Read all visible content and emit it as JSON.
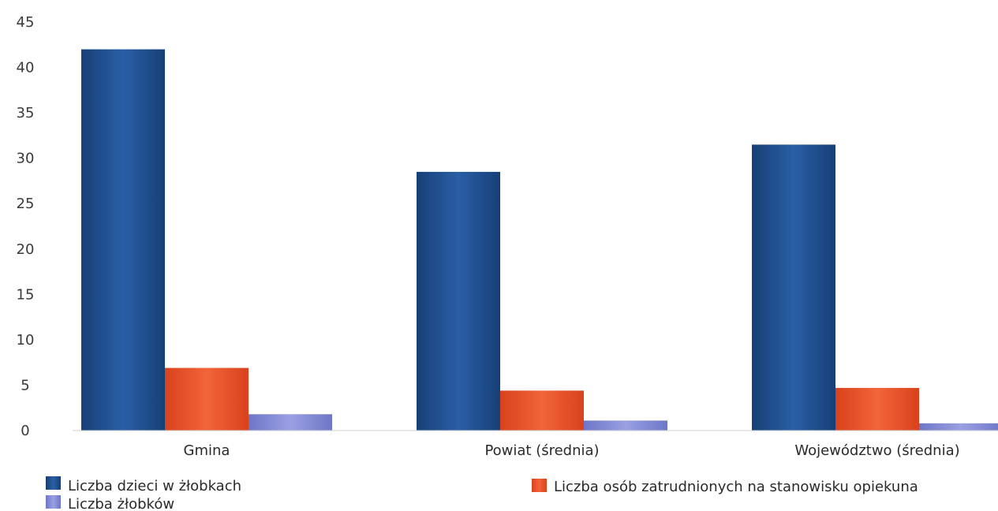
{
  "chart_data": {
    "type": "bar",
    "categories": [
      "Gmina",
      "Powiat (średnia)",
      "Województwo (średnia)"
    ],
    "series": [
      {
        "name": "Liczba dzieci w żłobkach",
        "values": [
          42,
          28.5,
          31.5
        ],
        "color": "#1f4e8f"
      },
      {
        "name": "Liczba osób zatrudnionych na stanowisku opiekuna",
        "values": [
          6.9,
          4.4,
          4.7
        ],
        "color": "#e8502a"
      },
      {
        "name": "Liczba żłobków",
        "values": [
          1.8,
          1.1,
          0.8
        ],
        "color": "#7f86d4"
      }
    ],
    "ylim": [
      0,
      45
    ],
    "yticks": [
      0,
      5,
      10,
      15,
      20,
      25,
      30,
      35,
      40,
      45
    ],
    "grid": false,
    "legend_position": "bottom",
    "title": "",
    "xlabel": "",
    "ylabel": ""
  }
}
